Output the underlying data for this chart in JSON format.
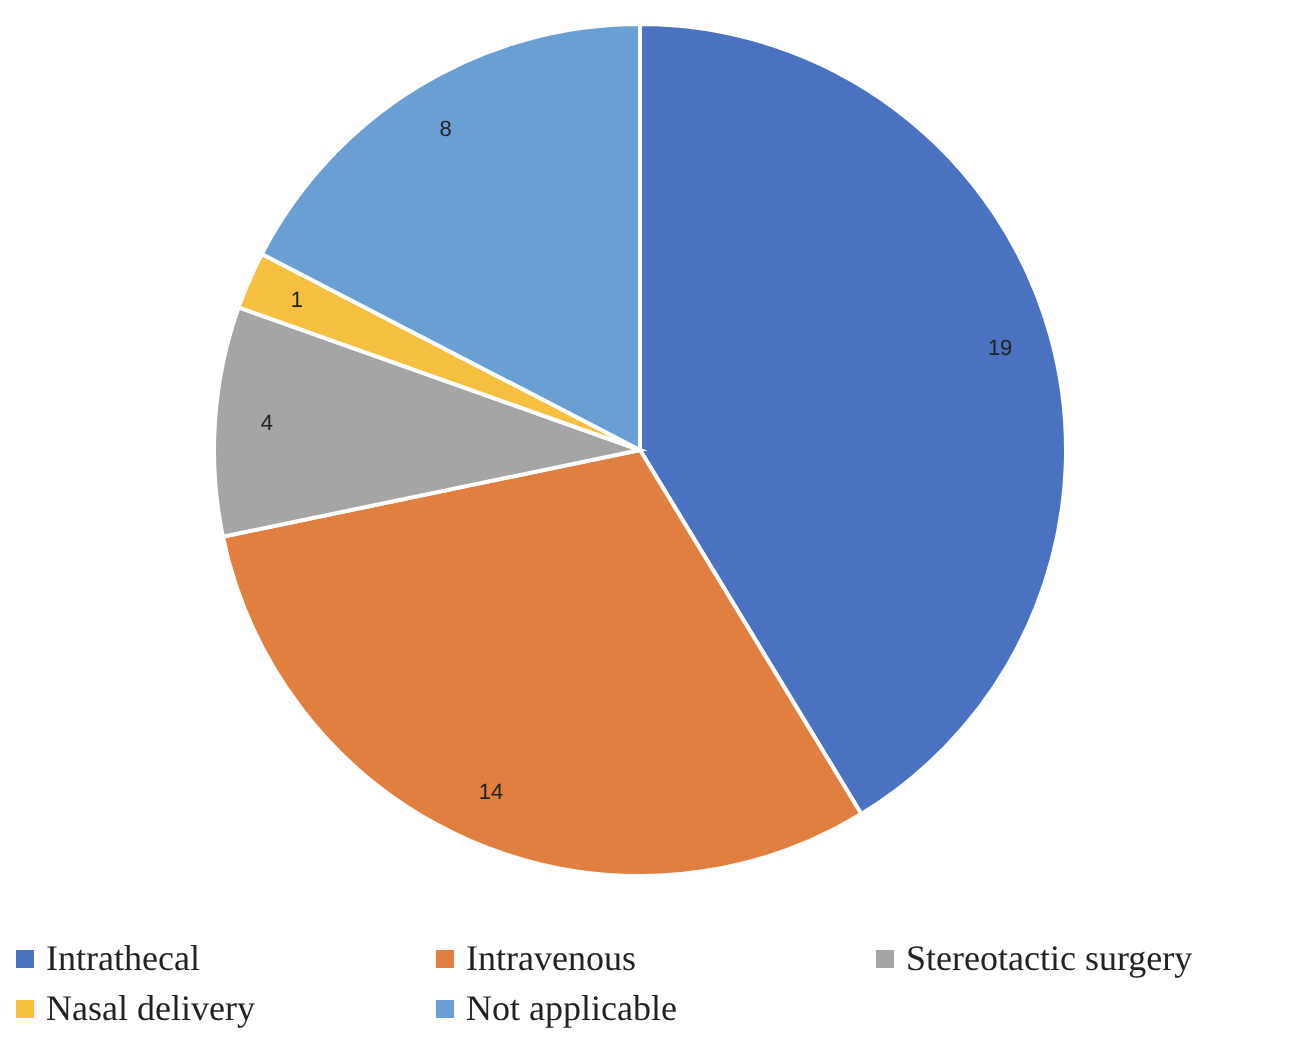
{
  "chart_data": {
    "type": "pie",
    "categories": [
      "Intrathecal",
      "Intravenous",
      "Stereotactic surgery",
      "Nasal delivery",
      "Not applicable"
    ],
    "values": [
      19,
      14,
      4,
      1,
      8
    ],
    "colors": [
      "#4a72c0",
      "#e07f3f",
      "#a5a5a5",
      "#f5c040",
      "#6a9fd4"
    ],
    "data_labels": true,
    "legend": "bottom"
  }
}
